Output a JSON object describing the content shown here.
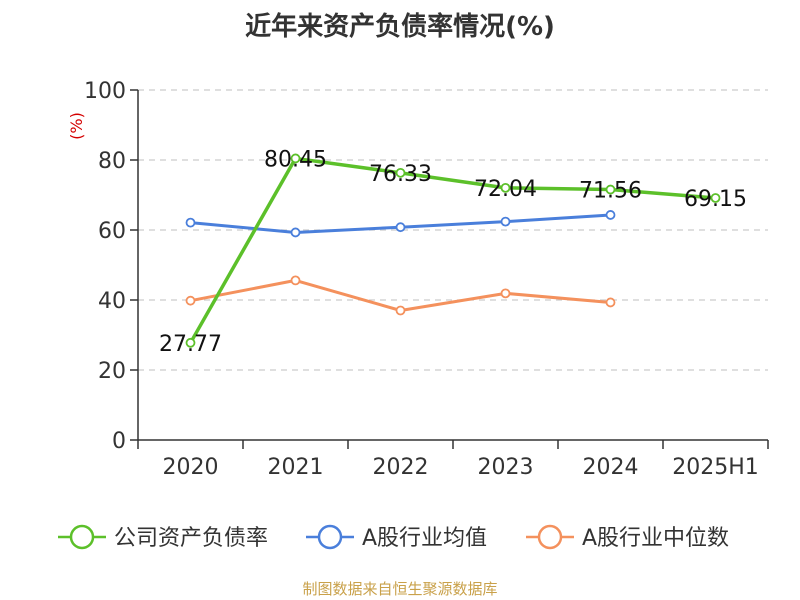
{
  "source_note": "制图数据来自恒生聚源数据库",
  "colors": {
    "series": [
      "#5cc02a",
      "#4a7fdb",
      "#f4915d"
    ],
    "axis": "#333333",
    "grid": "#cccccc",
    "ylabel": "#d40000"
  },
  "chart_data": {
    "type": "line",
    "title": "近年来资产负债率情况(%)",
    "ylabel": "(%)",
    "xlabel": "",
    "categories": [
      "2020",
      "2021",
      "2022",
      "2023",
      "2024",
      "2025H1"
    ],
    "ylim": [
      0,
      100
    ],
    "yticks": [
      "0",
      "20",
      "40",
      "60",
      "80",
      "100"
    ],
    "grid": true,
    "legend_position": "bottom",
    "series": [
      {
        "name": "公司资产负债率",
        "values": [
          27.77,
          80.45,
          76.33,
          72.04,
          71.56,
          69.15
        ],
        "labels": [
          "27.77",
          "80.45",
          "76.33",
          "72.04",
          "71.56",
          "69.15"
        ]
      },
      {
        "name": "A股行业均值",
        "values": [
          62.1,
          59.3,
          60.8,
          62.4,
          64.3,
          null
        ]
      },
      {
        "name": "A股行业中位数",
        "values": [
          39.8,
          45.6,
          37.0,
          41.9,
          39.3,
          null
        ]
      }
    ]
  }
}
